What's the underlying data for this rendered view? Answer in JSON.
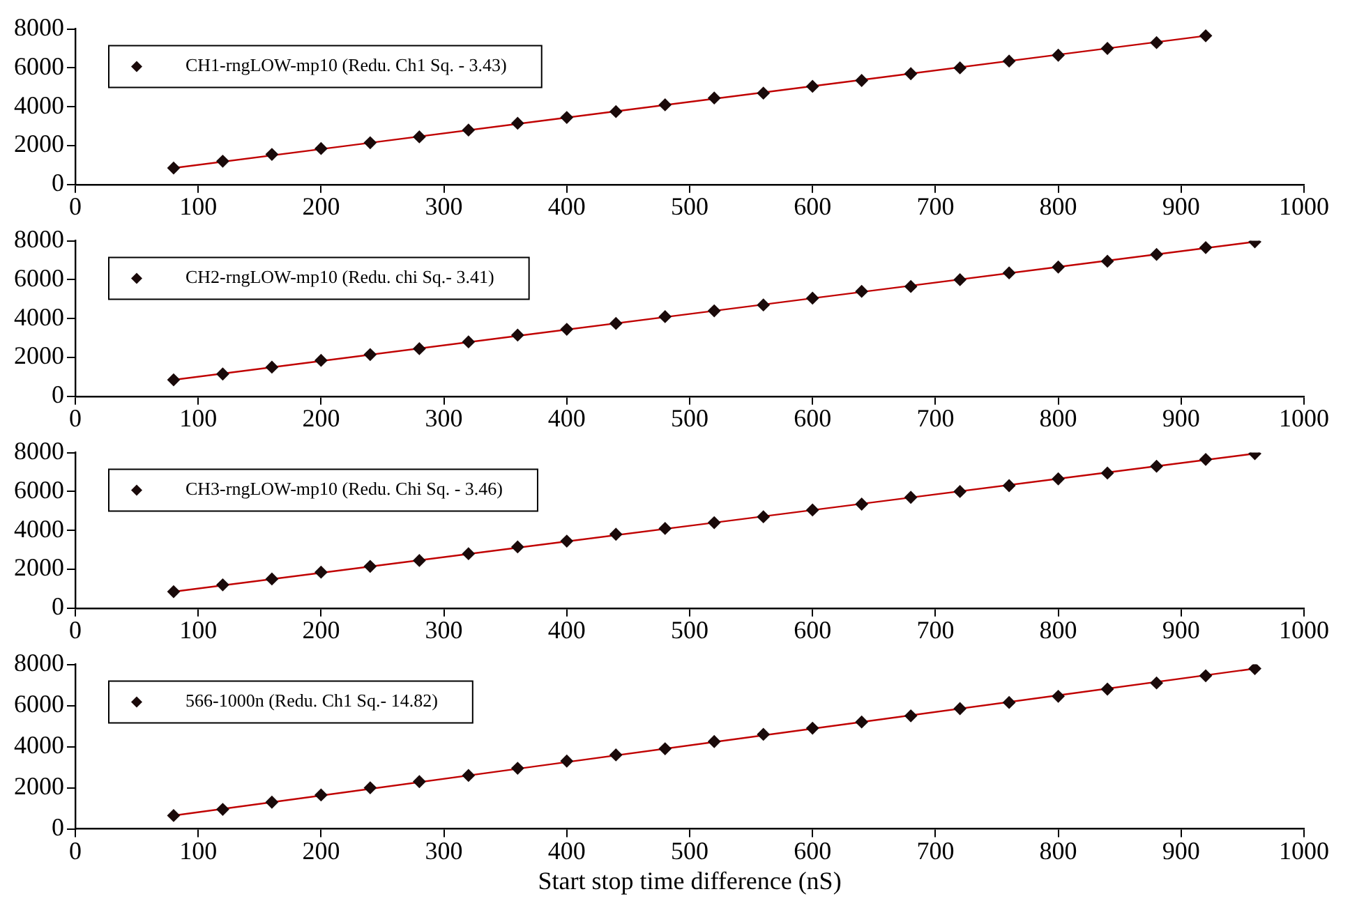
{
  "chart_data": [
    {
      "type": "scatter",
      "xlim": [
        0,
        1000
      ],
      "xticks": [
        0,
        100,
        200,
        300,
        400,
        500,
        600,
        700,
        800,
        900,
        1000
      ],
      "ylim": [
        0,
        8000
      ],
      "yticks": [
        0,
        2000,
        4000,
        6000,
        8000
      ],
      "grid": false,
      "legend": "top left",
      "marker": "diamond",
      "series": [
        {
          "name": "CH1-rngLOW-mp10 (Redu. Ch1 Sq. - 3.43)",
          "color": "#1a0a0a",
          "x": [
            80,
            120,
            160,
            200,
            240,
            280,
            320,
            360,
            400,
            440,
            480,
            520,
            560,
            600,
            640,
            680,
            720,
            760,
            800,
            840,
            880,
            920
          ],
          "values": [
            850,
            1200,
            1550,
            1850,
            2150,
            2450,
            2800,
            3150,
            3450,
            3750,
            4100,
            4450,
            4700,
            5050,
            5350,
            5700,
            6000,
            6350,
            6650,
            7000,
            7300,
            7650
          ]
        },
        {
          "type": "line",
          "color": "#c00000",
          "marker": "none",
          "x": [
            80,
            920
          ],
          "values": [
            850,
            7650
          ]
        }
      ]
    },
    {
      "type": "scatter",
      "xlim": [
        0,
        1000
      ],
      "xticks": [
        0,
        100,
        200,
        300,
        400,
        500,
        600,
        700,
        800,
        900,
        1000
      ],
      "ylim": [
        0,
        8000
      ],
      "yticks": [
        0,
        2000,
        4000,
        6000,
        8000
      ],
      "grid": false,
      "legend": "top left",
      "marker": "diamond",
      "series": [
        {
          "name": "CH2-rngLOW-mp10 (Redu. chi Sq.- 3.41)",
          "color": "#1a0a0a",
          "x": [
            80,
            120,
            160,
            200,
            240,
            280,
            320,
            360,
            400,
            440,
            480,
            520,
            560,
            600,
            640,
            680,
            720,
            760,
            800,
            840,
            880,
            920,
            960
          ],
          "values": [
            850,
            1150,
            1500,
            1850,
            2150,
            2450,
            2800,
            3150,
            3450,
            3750,
            4100,
            4400,
            4700,
            5050,
            5400,
            5650,
            6000,
            6350,
            6650,
            6950,
            7300,
            7650,
            7950
          ]
        },
        {
          "type": "line",
          "color": "#c00000",
          "marker": "none",
          "x": [
            80,
            960
          ],
          "values": [
            850,
            7950
          ]
        }
      ]
    },
    {
      "type": "scatter",
      "xlim": [
        0,
        1000
      ],
      "xticks": [
        0,
        100,
        200,
        300,
        400,
        500,
        600,
        700,
        800,
        900,
        1000
      ],
      "ylim": [
        0,
        8000
      ],
      "yticks": [
        0,
        2000,
        4000,
        6000,
        8000
      ],
      "grid": false,
      "legend": "top left",
      "marker": "diamond",
      "series": [
        {
          "name": "CH3-rngLOW-mp10 (Redu. Chi Sq. - 3.46)",
          "color": "#1a0a0a",
          "x": [
            80,
            120,
            160,
            200,
            240,
            280,
            320,
            360,
            400,
            440,
            480,
            520,
            560,
            600,
            640,
            680,
            720,
            760,
            800,
            840,
            880,
            920,
            960
          ],
          "values": [
            850,
            1200,
            1500,
            1850,
            2150,
            2450,
            2800,
            3150,
            3450,
            3800,
            4100,
            4400,
            4700,
            5050,
            5350,
            5700,
            6000,
            6300,
            6650,
            6950,
            7300,
            7650,
            7950
          ]
        },
        {
          "type": "line",
          "color": "#c00000",
          "marker": "none",
          "x": [
            80,
            960
          ],
          "values": [
            850,
            7950
          ]
        }
      ]
    },
    {
      "type": "scatter",
      "xlim": [
        0,
        1000
      ],
      "xticks": [
        0,
        100,
        200,
        300,
        400,
        500,
        600,
        700,
        800,
        900,
        1000
      ],
      "ylim": [
        0,
        8000
      ],
      "yticks": [
        0,
        2000,
        4000,
        6000,
        8000
      ],
      "grid": false,
      "legend": "top left",
      "marker": "diamond",
      "xlabel": "Start stop time difference (nS)",
      "series": [
        {
          "name": "566-1000n (Redu. Ch1 Sq.- 14.82)",
          "color": "#1a0a0a",
          "x": [
            80,
            120,
            160,
            200,
            240,
            280,
            320,
            360,
            400,
            440,
            480,
            520,
            560,
            600,
            640,
            680,
            720,
            760,
            800,
            840,
            880,
            920,
            960
          ],
          "values": [
            650,
            950,
            1300,
            1650,
            2000,
            2300,
            2600,
            2950,
            3300,
            3600,
            3900,
            4250,
            4600,
            4900,
            5200,
            5500,
            5850,
            6150,
            6450,
            6800,
            7100,
            7450,
            7800
          ]
        },
        {
          "type": "line",
          "color": "#c00000",
          "marker": "none",
          "x": [
            80,
            960
          ],
          "values": [
            650,
            7800
          ]
        }
      ]
    }
  ]
}
